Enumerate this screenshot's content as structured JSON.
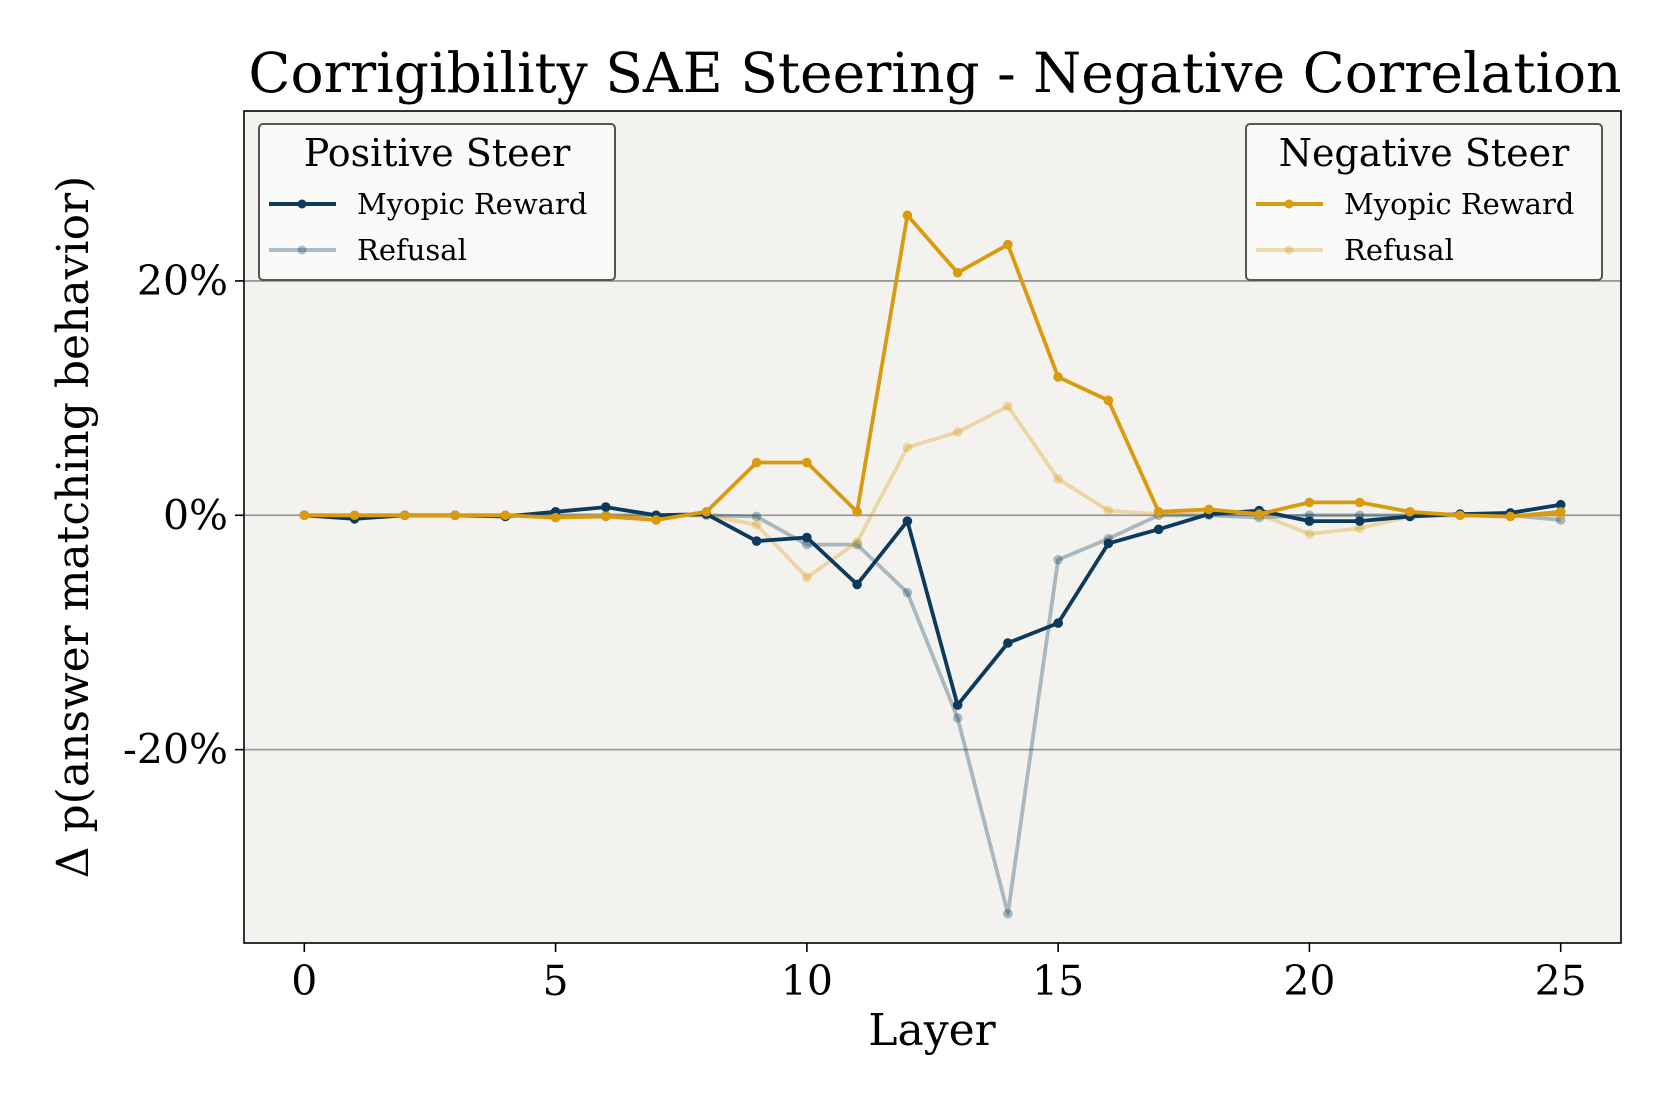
{
  "chart_data": {
    "type": "line",
    "title": "Corrigibility SAE Steering - Negative Correlation",
    "xlabel": "Layer",
    "ylabel": "Δ p(answer matching behavior)",
    "xlim": [
      -1.2,
      26.2
    ],
    "ylim": [
      -36.5,
      34.5
    ],
    "x_ticks": [
      0,
      5,
      10,
      15,
      20,
      25
    ],
    "x_tick_labels": [
      "0",
      "5",
      "10",
      "15",
      "20",
      "25"
    ],
    "y_ticks": [
      -20,
      0,
      20
    ],
    "y_tick_labels": [
      "-20%",
      "0%",
      "20%"
    ],
    "grid": "horizontal",
    "x": [
      0,
      1,
      2,
      3,
      4,
      5,
      6,
      7,
      8,
      9,
      10,
      11,
      12,
      13,
      14,
      15,
      16,
      17,
      18,
      19,
      20,
      21,
      22,
      23,
      24,
      25
    ],
    "legends": [
      {
        "title": "Positive Steer",
        "placement": "top-left",
        "entries": [
          "Myopic Reward",
          "Refusal"
        ]
      },
      {
        "title": "Negative Steer",
        "placement": "top-right",
        "entries": [
          "Myopic Reward",
          "Refusal"
        ]
      }
    ],
    "series": [
      {
        "name": "Myopic Reward",
        "group": "Positive Steer",
        "color": "#0b3a5c",
        "opacity": 1.0,
        "values": [
          0,
          -0.3,
          0,
          0,
          -0.1,
          0.3,
          0.7,
          0,
          0.1,
          -2.2,
          -1.9,
          -5.9,
          -0.5,
          -16.2,
          -10.9,
          -9.2,
          -2.4,
          -1.2,
          0.1,
          0.4,
          -0.5,
          -0.5,
          -0.1,
          0.1,
          0.2,
          0.9
        ]
      },
      {
        "name": "Refusal",
        "group": "Positive Steer",
        "color": "#0b3a5c",
        "opacity": 0.32,
        "values": [
          0,
          0,
          0,
          0,
          0,
          0,
          0,
          0,
          0,
          -0.1,
          -2.5,
          -2.5,
          -6.6,
          -17.3,
          -34,
          -3.8,
          -2,
          0,
          0,
          -0.2,
          0,
          0,
          0,
          0,
          0,
          -0.4
        ]
      },
      {
        "name": "Myopic Reward",
        "group": "Negative Steer",
        "color": "#d99a0d",
        "opacity": 1.0,
        "values": [
          0,
          0,
          0,
          0,
          0,
          -0.2,
          -0.1,
          -0.4,
          0.3,
          4.5,
          4.5,
          0.3,
          25.6,
          20.7,
          23.1,
          11.8,
          9.8,
          0.3,
          0.5,
          0.1,
          1.1,
          1.1,
          0.3,
          0,
          -0.1,
          0.3
        ]
      },
      {
        "name": "Refusal",
        "group": "Negative Steer",
        "color": "#d99a0d",
        "opacity": 0.32,
        "values": [
          0,
          0,
          0,
          0,
          0,
          0,
          0,
          0,
          0,
          -0.8,
          -5.3,
          -2.3,
          5.8,
          7.1,
          9.3,
          3.1,
          0.4,
          0.1,
          0.4,
          0.1,
          -1.6,
          -1.1,
          -0.1,
          0,
          0,
          0
        ]
      }
    ]
  }
}
